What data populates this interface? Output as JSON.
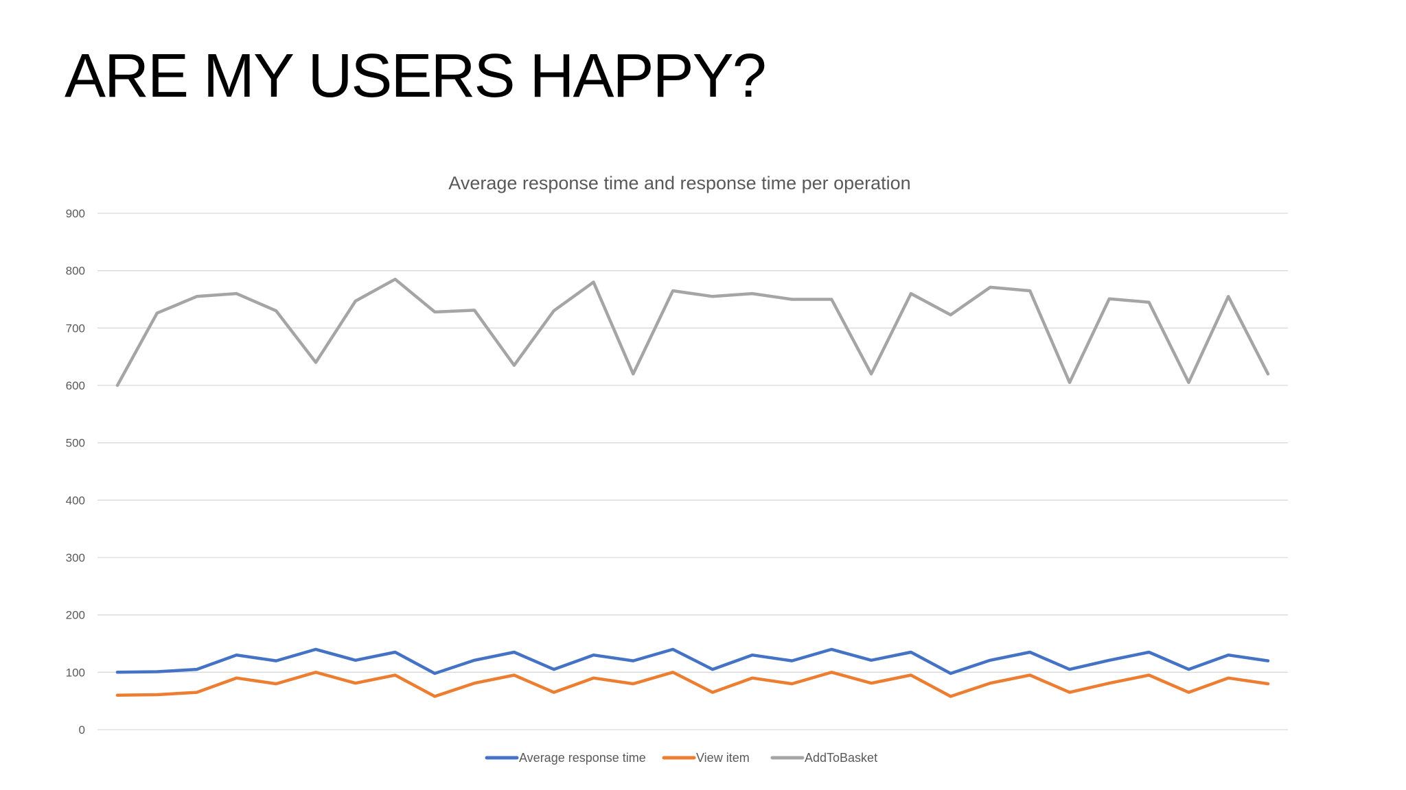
{
  "slide": {
    "title": "ARE MY USERS HAPPY?"
  },
  "chart_data": {
    "type": "line",
    "title": "Average response time and response time per operation",
    "xlabel": "",
    "ylabel": "",
    "ylim": [
      0,
      900
    ],
    "yticks": [
      0,
      100,
      200,
      300,
      400,
      500,
      600,
      700,
      800,
      900
    ],
    "grid": true,
    "legend": "bottom",
    "series": [
      {
        "name": "Average response time",
        "color": "#4472C4",
        "values": [
          100,
          101,
          105,
          130,
          120,
          140,
          121,
          135,
          98,
          121,
          135,
          105,
          130,
          120,
          140,
          105,
          130,
          120,
          140,
          121,
          135,
          98,
          121,
          135,
          105,
          121,
          135,
          105,
          130,
          120
        ]
      },
      {
        "name": "View item",
        "color": "#ED7D31",
        "values": [
          60,
          61,
          65,
          90,
          80,
          100,
          81,
          95,
          58,
          81,
          95,
          65,
          90,
          80,
          100,
          65,
          90,
          80,
          100,
          81,
          95,
          58,
          81,
          95,
          65,
          81,
          95,
          65,
          90,
          80
        ]
      },
      {
        "name": "AddToBasket",
        "color": "#A5A5A5",
        "values": [
          600,
          726,
          755,
          760,
          730,
          640,
          747,
          785,
          728,
          731,
          635,
          730,
          780,
          620,
          765,
          755,
          760,
          750,
          750,
          620,
          760,
          723,
          771,
          765,
          605,
          751,
          745,
          605,
          755,
          620
        ]
      }
    ]
  }
}
